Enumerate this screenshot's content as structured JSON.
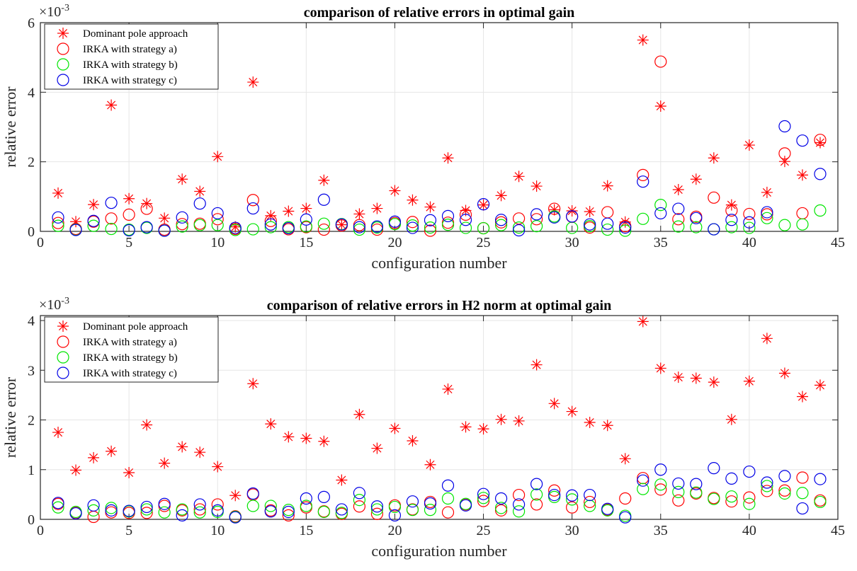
{
  "chart_data": [
    {
      "type": "scatter",
      "title": "comparison of relative errors in optimal gain",
      "xlabel": "configuration number",
      "ylabel": "relative error",
      "y_exponent_label": "×10-3",
      "xlim": [
        0,
        45
      ],
      "ylim": [
        0,
        6
      ],
      "xticks": [
        0,
        5,
        10,
        15,
        20,
        25,
        30,
        35,
        40,
        45
      ],
      "yticks": [
        0,
        2,
        4,
        6
      ],
      "grid": true,
      "legend_position": "top-left",
      "x": [
        1,
        2,
        3,
        4,
        5,
        6,
        7,
        8,
        9,
        10,
        11,
        12,
        13,
        14,
        15,
        16,
        17,
        18,
        19,
        20,
        21,
        22,
        23,
        24,
        25,
        26,
        27,
        28,
        29,
        30,
        31,
        32,
        33,
        34,
        35,
        36,
        37,
        38,
        39,
        40,
        41,
        42,
        43,
        44
      ],
      "series": [
        {
          "name": "Dominant pole approach",
          "marker": "asterisk",
          "color": "#ff0000",
          "values": [
            1.1,
            0.28,
            0.77,
            3.63,
            0.94,
            0.8,
            0.38,
            1.5,
            1.15,
            2.15,
            0.13,
            4.29,
            0.45,
            0.58,
            0.66,
            1.47,
            0.19,
            0.5,
            0.66,
            1.17,
            0.9,
            0.7,
            2.11,
            0.6,
            0.76,
            1.03,
            1.58,
            1.3,
            0.62,
            0.59,
            0.57,
            1.31,
            0.27,
            5.5,
            3.6,
            1.2,
            1.5,
            2.11,
            0.76,
            2.48,
            1.12,
            2.01,
            1.62,
            2.55
          ]
        },
        {
          "name": "IRKA with strategy a)",
          "marker": "circle",
          "color": "#ff0000",
          "values": [
            0.24,
            0.07,
            0.28,
            0.37,
            0.48,
            0.65,
            0.05,
            0.21,
            0.22,
            0.35,
            0.07,
            0.9,
            0.3,
            0.06,
            0.12,
            0.05,
            0.17,
            0.18,
            0.05,
            0.24,
            0.27,
            0.02,
            0.25,
            0.48,
            0.09,
            0.26,
            0.37,
            0.35,
            0.65,
            0.42,
            0.11,
            0.55,
            0.15,
            1.62,
            4.88,
            0.35,
            0.42,
            0.97,
            0.6,
            0.5,
            0.49,
            2.24,
            0.52,
            2.63
          ]
        },
        {
          "name": "IRKA with strategy b)",
          "marker": "circle",
          "color": "#00e600",
          "values": [
            0.16,
            0.05,
            0.16,
            0.07,
            0.05,
            0.1,
            0.02,
            0.14,
            0.18,
            0.18,
            0.04,
            0.06,
            0.12,
            0.12,
            0.14,
            0.22,
            0.21,
            0.05,
            0.11,
            0.21,
            0.17,
            0.11,
            0.19,
            0.1,
            0.09,
            0.18,
            0.11,
            0.15,
            0.43,
            0.1,
            0.15,
            0.05,
            0.02,
            0.36,
            0.76,
            0.14,
            0.12,
            0.06,
            0.12,
            0.1,
            0.38,
            0.18,
            0.2,
            0.6
          ]
        },
        {
          "name": "IRKA with strategy c)",
          "marker": "circle",
          "color": "#0000e6",
          "values": [
            0.4,
            0.04,
            0.3,
            0.82,
            0.03,
            0.12,
            0.02,
            0.4,
            0.8,
            0.52,
            0.1,
            0.66,
            0.2,
            0.09,
            0.34,
            0.91,
            0.2,
            0.12,
            0.14,
            0.28,
            0.1,
            0.32,
            0.44,
            0.33,
            0.78,
            0.33,
            0.03,
            0.49,
            0.4,
            0.43,
            0.2,
            0.22,
            0.11,
            1.43,
            0.52,
            0.65,
            0.38,
            0.06,
            0.33,
            0.26,
            0.55,
            3.02,
            2.61,
            1.65
          ]
        }
      ]
    },
    {
      "type": "scatter",
      "title": "comparison of relative errors in H2 norm at optimal gain",
      "xlabel": "configuration number",
      "ylabel": "relative error",
      "y_exponent_label": "×10-3",
      "xlim": [
        0,
        45
      ],
      "ylim": [
        0,
        4.1
      ],
      "xticks": [
        0,
        5,
        10,
        15,
        20,
        25,
        30,
        35,
        40,
        45
      ],
      "yticks": [
        0,
        1,
        2,
        3,
        4
      ],
      "grid": true,
      "legend_position": "top-left",
      "x": [
        1,
        2,
        3,
        4,
        5,
        6,
        7,
        8,
        9,
        10,
        11,
        12,
        13,
        14,
        15,
        16,
        17,
        18,
        19,
        20,
        21,
        22,
        23,
        24,
        25,
        26,
        27,
        28,
        29,
        30,
        31,
        32,
        33,
        34,
        35,
        36,
        37,
        38,
        39,
        40,
        41,
        42,
        43,
        44
      ],
      "series": [
        {
          "name": "Dominant pole approach",
          "marker": "asterisk",
          "color": "#ff0000",
          "values": [
            1.75,
            0.99,
            1.24,
            1.37,
            0.94,
            1.9,
            1.13,
            1.46,
            1.35,
            1.06,
            0.48,
            2.73,
            1.92,
            1.66,
            1.63,
            1.57,
            0.79,
            2.11,
            1.43,
            1.83,
            1.58,
            1.1,
            2.62,
            1.86,
            1.82,
            2.01,
            1.98,
            3.11,
            2.33,
            2.17,
            1.95,
            1.89,
            1.22,
            3.98,
            3.04,
            2.86,
            2.84,
            2.76,
            2.01,
            2.78,
            3.64,
            2.94,
            2.47,
            2.7
          ]
        },
        {
          "name": "IRKA with strategy a)",
          "marker": "circle",
          "color": "#ff0000",
          "values": [
            0.31,
            0.13,
            0.05,
            0.14,
            0.13,
            0.13,
            0.27,
            0.18,
            0.2,
            0.3,
            0.06,
            0.5,
            0.18,
            0.08,
            0.24,
            0.16,
            0.11,
            0.26,
            0.11,
            0.28,
            0.2,
            0.35,
            0.14,
            0.3,
            0.37,
            0.18,
            0.49,
            0.3,
            0.58,
            0.24,
            0.35,
            0.19,
            0.42,
            0.83,
            0.6,
            0.38,
            0.52,
            0.43,
            0.36,
            0.44,
            0.57,
            0.58,
            0.84,
            0.38
          ]
        },
        {
          "name": "IRKA with strategy b)",
          "marker": "circle",
          "color": "#00e600",
          "values": [
            0.24,
            0.15,
            0.18,
            0.23,
            0.16,
            0.2,
            0.14,
            0.2,
            0.14,
            0.15,
            0.05,
            0.27,
            0.27,
            0.19,
            0.27,
            0.15,
            0.13,
            0.39,
            0.2,
            0.25,
            0.19,
            0.19,
            0.42,
            0.31,
            0.43,
            0.23,
            0.16,
            0.5,
            0.45,
            0.4,
            0.27,
            0.18,
            0.07,
            0.61,
            0.7,
            0.55,
            0.54,
            0.41,
            0.46,
            0.31,
            0.67,
            0.52,
            0.53,
            0.35
          ]
        },
        {
          "name": "IRKA with strategy c)",
          "marker": "circle",
          "color": "#0000e6",
          "values": [
            0.33,
            0.12,
            0.28,
            0.18,
            0.17,
            0.25,
            0.31,
            0.08,
            0.3,
            0.18,
            0.04,
            0.52,
            0.16,
            0.15,
            0.42,
            0.45,
            0.2,
            0.53,
            0.26,
            0.08,
            0.36,
            0.32,
            0.68,
            0.28,
            0.51,
            0.42,
            0.3,
            0.71,
            0.49,
            0.48,
            0.49,
            0.21,
            0.04,
            0.78,
            1.0,
            0.72,
            0.71,
            1.03,
            0.82,
            0.96,
            0.74,
            0.87,
            0.22,
            0.81
          ]
        }
      ]
    }
  ]
}
